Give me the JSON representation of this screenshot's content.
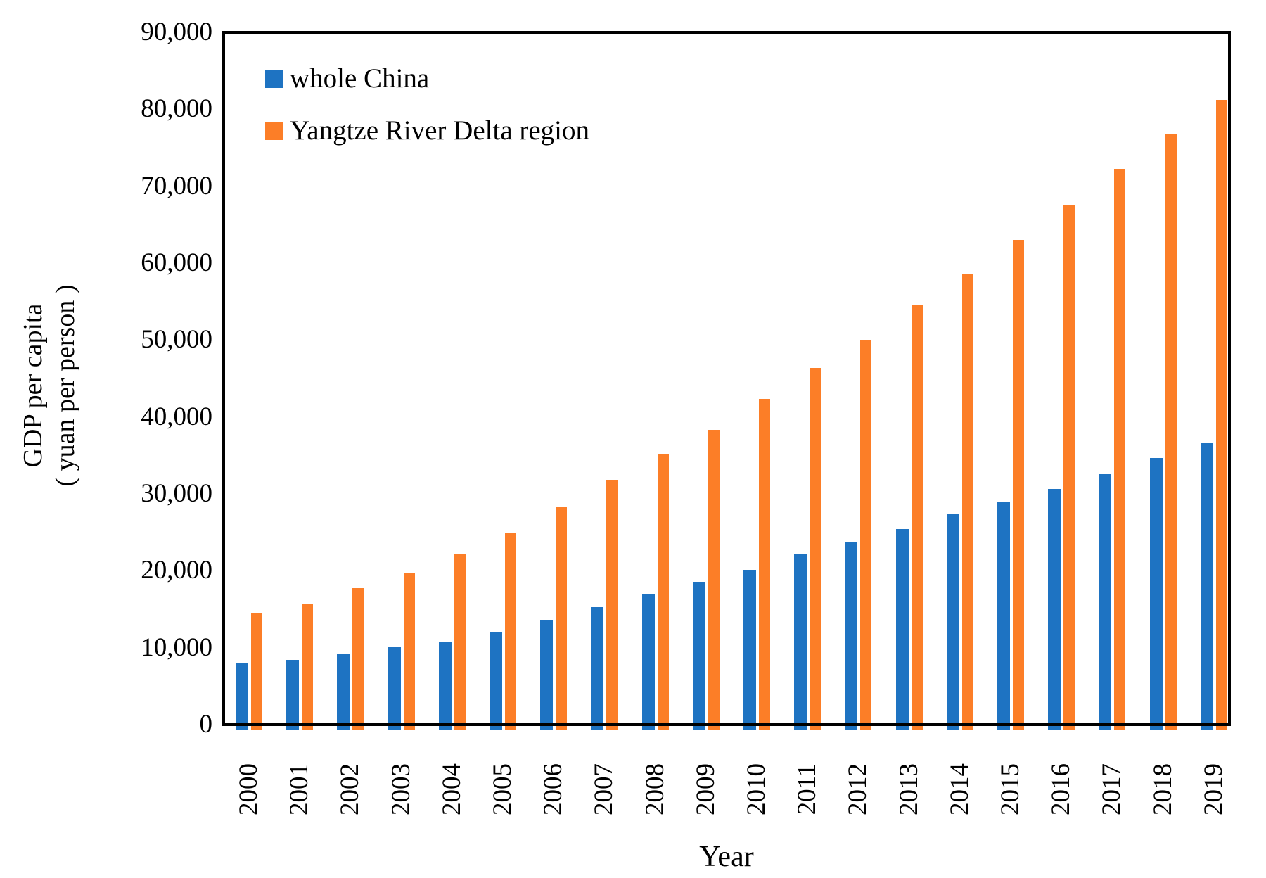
{
  "chart_data": {
    "type": "bar",
    "title": "",
    "xlabel": "Year",
    "ylabel_line1": "GDP per capita",
    "ylabel_line2": "( yuan per person )",
    "categories": [
      "2000",
      "2001",
      "2002",
      "2003",
      "2004",
      "2005",
      "2006",
      "2007",
      "2008",
      "2009",
      "2010",
      "2011",
      "2012",
      "2013",
      "2014",
      "2015",
      "2016",
      "2017",
      "2018",
      "2019"
    ],
    "series": [
      {
        "name": "whole China",
        "color": "#1E73C2",
        "values": [
          7950,
          8400,
          9150,
          10050,
          10800,
          11950,
          13650,
          15250,
          16900,
          18550,
          20100,
          22150,
          23800,
          25400,
          27400,
          29000,
          30600,
          32600,
          34700,
          36700
        ]
      },
      {
        "name": "Yangtze River Delta region",
        "color": "#FC7E27",
        "values": [
          14450,
          15650,
          17700,
          19650,
          22100,
          25000,
          28250,
          31850,
          35100,
          38350,
          42350,
          46350,
          50000,
          54500,
          58550,
          63000,
          67550,
          72300,
          76700,
          81200
        ]
      }
    ],
    "ylim": [
      0,
      90000
    ],
    "ytick_interval": 10000,
    "ytick_labels": [
      "0",
      "10,000",
      "20,000",
      "30,000",
      "40,000",
      "50,000",
      "60,000",
      "70,000",
      "80,000",
      "90,000"
    ],
    "legend_position": "top-left",
    "grid": false
  }
}
